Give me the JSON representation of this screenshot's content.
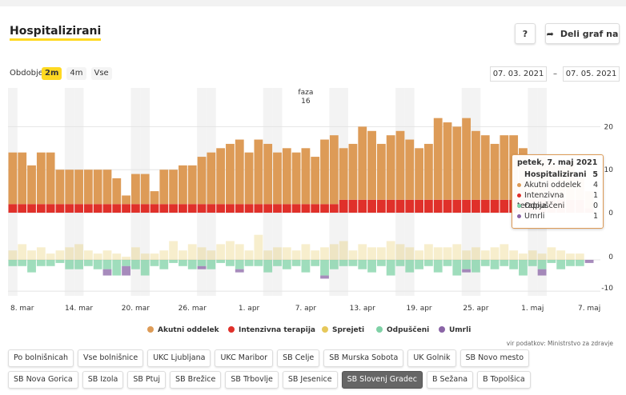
{
  "header": {
    "title": "Hospitalizirani",
    "help": "?",
    "share": "Deli graf na"
  },
  "controls": {
    "period_label": "Obdobje",
    "periods": [
      "2m",
      "4m",
      "Vse"
    ],
    "active_period": 0,
    "date_from": "07. 03. 2021",
    "date_sep": "–",
    "date_to": "07. 05. 2021"
  },
  "chart_data": {
    "type": "bar",
    "categories": [
      null,
      "8. mar",
      null,
      null,
      null,
      null,
      null,
      "14. mar",
      null,
      null,
      null,
      null,
      null,
      "20. mar",
      null,
      null,
      null,
      null,
      null,
      "26. mar",
      null,
      null,
      null,
      null,
      null,
      "1. apr",
      null,
      null,
      null,
      null,
      null,
      "7. apr",
      null,
      null,
      null,
      null,
      null,
      "13. apr",
      null,
      null,
      null,
      null,
      null,
      "19. apr",
      null,
      null,
      null,
      null,
      null,
      "25. apr",
      null,
      null,
      null,
      null,
      null,
      "1. maj",
      null,
      null,
      null,
      null,
      null,
      "7. maj"
    ],
    "series": [
      {
        "name": "Akutni oddelek",
        "color": "#dd9b57",
        "panel": "top",
        "values": [
          12,
          12,
          9,
          12,
          12,
          8,
          8,
          8,
          8,
          8,
          8,
          6,
          2,
          7,
          7,
          3,
          8,
          8,
          9,
          9,
          11,
          12,
          13,
          14,
          15,
          12,
          15,
          14,
          12,
          13,
          12,
          13,
          11,
          15,
          16,
          12,
          13,
          17,
          16,
          13,
          15,
          16,
          14,
          12,
          13,
          19,
          18,
          17,
          19,
          16,
          15,
          13,
          15,
          15,
          12,
          9,
          10,
          9,
          8,
          9,
          5,
          4
        ]
      },
      {
        "name": "Intenzivna terapija",
        "color": "#e0302a",
        "panel": "top",
        "values": [
          2,
          2,
          2,
          2,
          2,
          2,
          2,
          2,
          2,
          2,
          2,
          2,
          2,
          2,
          2,
          2,
          2,
          2,
          2,
          2,
          2,
          2,
          2,
          2,
          2,
          2,
          2,
          2,
          2,
          2,
          2,
          2,
          2,
          2,
          2,
          3,
          3,
          3,
          3,
          3,
          3,
          3,
          3,
          3,
          3,
          3,
          3,
          3,
          3,
          3,
          3,
          3,
          3,
          3,
          3,
          3,
          3,
          3,
          3,
          3,
          3,
          1
        ]
      },
      {
        "name": "Sprejeti",
        "color": "#e6c85a",
        "panel": "bottom",
        "values": [
          3,
          5,
          3,
          4,
          2,
          3,
          4,
          5,
          3,
          2,
          3,
          2,
          1,
          4,
          2,
          2,
          3,
          6,
          3,
          5,
          4,
          3,
          5,
          6,
          5,
          3,
          8,
          3,
          4,
          4,
          3,
          5,
          3,
          4,
          5,
          6,
          3,
          5,
          4,
          4,
          6,
          5,
          4,
          3,
          5,
          4,
          4,
          5,
          3,
          4,
          3,
          4,
          5,
          3,
          2,
          3,
          2,
          4,
          3,
          2,
          2,
          0
        ]
      },
      {
        "name": "Odpuščeni",
        "color": "#7fd1a6",
        "panel": "bottom",
        "values": [
          -2,
          -2,
          -4,
          -2,
          -2,
          -1,
          -3,
          -3,
          -2,
          -3,
          -3,
          -5,
          -2,
          -3,
          -5,
          -2,
          -3,
          -1,
          -2,
          -3,
          -2,
          -3,
          -1,
          -2,
          -3,
          -2,
          -2,
          -4,
          -2,
          -3,
          -2,
          -4,
          -2,
          -5,
          -3,
          -2,
          -2,
          -3,
          -4,
          -2,
          -5,
          -2,
          -4,
          -3,
          -2,
          -4,
          -2,
          -5,
          -3,
          -4,
          -2,
          -3,
          -2,
          -3,
          -5,
          -2,
          -3,
          -1,
          -3,
          -2,
          -2,
          0
        ]
      },
      {
        "name": "Umrli",
        "color": "#8a64a6",
        "panel": "bottom",
        "values": [
          0,
          0,
          0,
          0,
          0,
          0,
          0,
          0,
          0,
          0,
          -2,
          0,
          -3,
          0,
          0,
          0,
          0,
          0,
          0,
          0,
          -1,
          0,
          0,
          0,
          -1,
          0,
          0,
          0,
          0,
          0,
          0,
          0,
          0,
          -1,
          0,
          0,
          0,
          0,
          0,
          0,
          0,
          0,
          0,
          0,
          0,
          0,
          0,
          0,
          -1,
          0,
          0,
          0,
          0,
          0,
          0,
          0,
          -2,
          0,
          0,
          0,
          0,
          -1
        ]
      }
    ],
    "ylim": [
      0,
      29
    ],
    "yticks": [
      0,
      10,
      20
    ],
    "y2lim": [
      -11.5,
      12
    ],
    "y2ticks": [
      -10,
      0
    ],
    "annotation": {
      "x": "7. apr",
      "label": "faza",
      "number": 16
    },
    "tooltip": {
      "title": "petek, 7. maj 2021",
      "total_label": "Hospitalizirani",
      "total": 5,
      "rows": [
        {
          "name": "Akutni oddelek",
          "value": 4,
          "color": "#dd9b57"
        },
        {
          "name": "Intenzivna terapija",
          "value": 1,
          "color": "#e0302a"
        },
        {
          "name": "Odpuščeni",
          "value": 0,
          "color": "#7fd1a6"
        },
        {
          "name": "Umrli",
          "value": 1,
          "color": "#8a64a6"
        }
      ]
    }
  },
  "source": "vir podatkov: Ministrstvo za zdravje",
  "hospitals": [
    "Po bolnišnicah",
    "Vse bolnišnice",
    "UKC Ljubljana",
    "UKC Maribor",
    "SB Celje",
    "SB Murska Sobota",
    "UK Golnik",
    "SB Novo mesto",
    "SB Nova Gorica",
    "SB Izola",
    "SB Ptuj",
    "SB Brežice",
    "SB Trbovlje",
    "SB Jesenice",
    "SB Slovenj Gradec",
    "B Sežana",
    "B Topolšica"
  ],
  "selected_hospital": 14
}
